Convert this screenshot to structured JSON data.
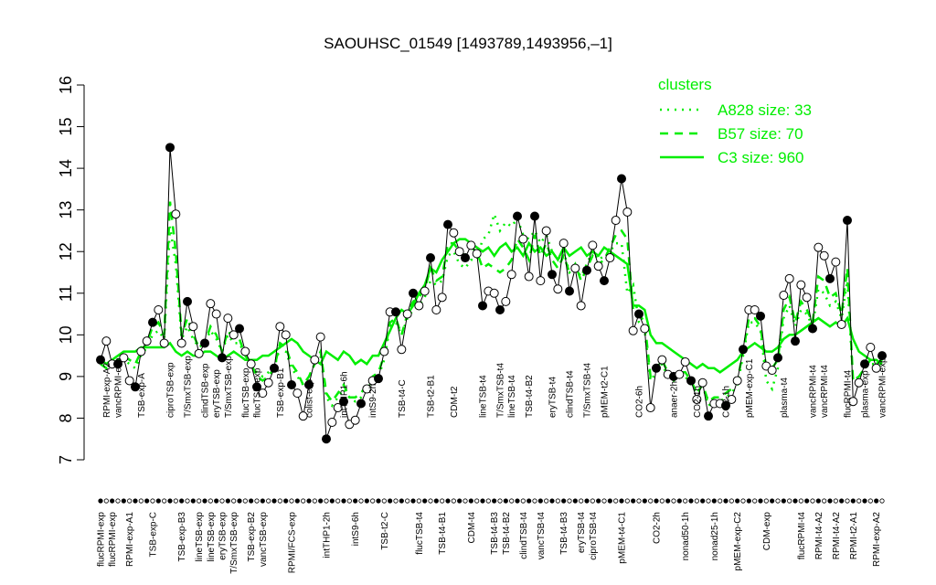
{
  "chart_data": {
    "type": "line",
    "title": "SAOUHSC_01549 [1493789,1493956,–1]",
    "ylim": [
      7,
      16
    ],
    "yticks": [
      7,
      8,
      9,
      10,
      11,
      12,
      13,
      14,
      15,
      16
    ],
    "categories": [
      "flucRPMI-exp",
      "RPMI-exp-A2",
      "flucRPMI-exp",
      "vancRPMI-exp",
      null,
      "RPMI-exp-A1",
      null,
      "TSB-exp-A",
      null,
      "TSB-exp-C",
      null,
      null,
      "ciproTSB-exp",
      null,
      "TSB-exp-B3",
      "T/SmxTSB-exp",
      null,
      "lineTSB-exp",
      "clindTSB-exp",
      "lineTSB-exp",
      "eryTSB-exp",
      "eryTSB-exp",
      "T/SmxTSB-exp",
      "T/SmxTSB-exp",
      null,
      "flucTSB-exp",
      "TSB-exp-B2",
      "flucTSB-exp",
      "vancTSB-exp",
      null,
      null,
      "TSB-exp-B1",
      null,
      "RPMI/FCS-exp",
      null,
      null,
      "colist-exp",
      null,
      null,
      "intTHP1-2h",
      null,
      null,
      "intTHP1-6h",
      null,
      "intS9-6h",
      null,
      null,
      "intS9-2h",
      null,
      "TSB-t2-C",
      null,
      null,
      "TSB-t4-C",
      null,
      null,
      "flucTSB-t4",
      null,
      "TSB-t2-B1",
      null,
      "TSB-t4-B1",
      null,
      "CDM-t2",
      null,
      null,
      "CDM-t4",
      null,
      "lineTSB-t4",
      null,
      "TSB-t4-B3",
      "T/SmxTSB-t4",
      "TSB-t4-B2",
      "lineTSB-t4",
      null,
      "clindTSB-t4",
      "TSB-t4-B2",
      null,
      "vancTSB-t4",
      null,
      "eryTSB-t4",
      null,
      "TSB-t4-B3",
      "clindTSB-t4",
      null,
      "eryTSB-t4",
      "T/SmxTSB-t4",
      "ciproTSB-t4",
      null,
      "pMEM-t2-C1",
      null,
      null,
      "pMEM-t4-C1",
      null,
      null,
      "CO2-6h",
      null,
      null,
      "CO2-2h",
      null,
      null,
      "anaer-2h",
      null,
      "nonad50-1h",
      null,
      "CO2-1h",
      null,
      null,
      "nonad25-1h",
      null,
      "CO2-1h",
      null,
      "pMEM-exp-C2",
      null,
      "pMEM-exp-C1",
      null,
      null,
      "CDM-exp",
      null,
      null,
      "plasma-t4",
      null,
      null,
      "flucRPMI-t4",
      null,
      "vancRPMI-t4",
      "RPMI-t4-A2",
      "vancRPMI-t4",
      null,
      "RPMI-t4-A2",
      null,
      "flucRPMI-t4",
      "RPMI-t2-A1",
      null,
      "plasma-exp",
      null,
      "RPMI-exp-A2",
      "vancRPMI-exp"
    ],
    "values": [
      9.4,
      9.85,
      9.3,
      9.3,
      9.45,
      8.9,
      8.75,
      9.6,
      9.85,
      10.3,
      10.6,
      9.8,
      14.5,
      12.9,
      9.8,
      10.8,
      10.2,
      9.55,
      9.8,
      10.75,
      10.5,
      9.45,
      10.4,
      10.0,
      10.15,
      9.6,
      9.3,
      8.75,
      8.6,
      8.85,
      9.2,
      10.2,
      10.0,
      8.8,
      8.6,
      8.05,
      8.8,
      9.4,
      9.95,
      7.5,
      7.9,
      8.25,
      8.4,
      7.85,
      7.95,
      8.35,
      8.7,
      8.9,
      8.95,
      9.6,
      10.55,
      10.55,
      9.65,
      10.5,
      11.0,
      10.7,
      11.05,
      11.85,
      10.6,
      10.9,
      12.65,
      12.45,
      12.0,
      11.85,
      12.15,
      11.95,
      10.7,
      11.05,
      11.0,
      10.6,
      10.8,
      11.45,
      12.85,
      12.3,
      11.4,
      12.85,
      11.3,
      12.5,
      11.45,
      11.1,
      12.2,
      11.05,
      11.6,
      10.7,
      11.55,
      12.15,
      11.65,
      11.3,
      11.85,
      12.75,
      13.75,
      12.95,
      10.1,
      10.5,
      10.15,
      8.25,
      9.2,
      9.4,
      9.05,
      9.0,
      9.05,
      9.35,
      8.9,
      8.45,
      8.85,
      8.05,
      8.35,
      8.35,
      8.3,
      8.45,
      8.9,
      9.65,
      10.6,
      10.6,
      10.45,
      9.25,
      9.15,
      9.45,
      10.95,
      11.35,
      9.85,
      11.2,
      10.9,
      10.15,
      12.1,
      11.9,
      11.35,
      11.75,
      10.25,
      12.75,
      8.4,
      8.85,
      9.3,
      9.7,
      9.2,
      9.5
    ],
    "legend_title": "clusters",
    "series": [
      {
        "name": "A828 size: 33",
        "color": "#00ee00",
        "dash": "dotted",
        "values": [
          9.3,
          9.3,
          9.3,
          9.4,
          9.4,
          9.3,
          9.2,
          9.5,
          9.7,
          10.0,
          10.1,
          9.9,
          12.6,
          11.7,
          9.9,
          10.2,
          9.9,
          9.7,
          9.8,
          10.1,
          9.9,
          9.6,
          10.0,
          9.8,
          9.8,
          9.5,
          9.3,
          9.1,
          9.0,
          9.1,
          9.2,
          9.7,
          9.6,
          9.2,
          9.0,
          8.8,
          9.0,
          9.3,
          9.5,
          8.5,
          8.3,
          8.5,
          8.7,
          8.5,
          8.4,
          8.5,
          8.7,
          8.9,
          9.0,
          9.4,
          10.2,
          10.3,
          10.0,
          10.4,
          10.6,
          10.7,
          10.9,
          11.3,
          11.2,
          11.3,
          11.9,
          12.0,
          11.7,
          11.6,
          11.8,
          11.8,
          12.3,
          12.4,
          12.9,
          12.5,
          12.7,
          12.6,
          12.8,
          12.4,
          12.3,
          12.5,
          12.2,
          12.4,
          12.0,
          11.8,
          12.0,
          11.5,
          11.6,
          11.4,
          11.7,
          12.0,
          11.8,
          11.9,
          12.0,
          12.2,
          12.2,
          11.0,
          11.2,
          10.3,
          10.1,
          8.9,
          9.1,
          9.3,
          9.0,
          8.9,
          9.0,
          9.0,
          8.8,
          8.6,
          8.8,
          8.3,
          8.4,
          8.4,
          8.5,
          8.6,
          8.8,
          9.5,
          10.3,
          10.3,
          10.1,
          8.9,
          8.7,
          9.2,
          10.4,
          10.7,
          10.2,
          10.6,
          10.5,
          10.2,
          11.1,
          11.0,
          10.7,
          10.8,
          10.4,
          11.3,
          8.9,
          9.0,
          9.2,
          9.3,
          9.3,
          9.3
        ]
      },
      {
        "name": "B57 size: 70",
        "color": "#00ee00",
        "dash": "dashed",
        "values": [
          9.3,
          9.2,
          9.3,
          9.4,
          9.5,
          9.4,
          9.3,
          9.6,
          9.8,
          10.2,
          10.3,
          10.0,
          13.2,
          12.0,
          10.0,
          10.4,
          10.0,
          9.7,
          9.8,
          10.2,
          10.0,
          9.6,
          10.1,
          9.9,
          9.9,
          9.5,
          9.3,
          9.0,
          8.9,
          9.0,
          9.2,
          9.8,
          9.7,
          9.3,
          9.1,
          8.8,
          9.0,
          9.3,
          9.6,
          8.6,
          8.4,
          8.6,
          8.8,
          8.5,
          8.5,
          8.6,
          8.8,
          9.0,
          9.1,
          9.5,
          10.3,
          10.4,
          10.0,
          10.5,
          10.8,
          10.9,
          11.1,
          11.6,
          11.3,
          11.4,
          12.2,
          12.2,
          12.0,
          11.9,
          12.1,
          12.0,
          11.6,
          11.7,
          11.6,
          11.5,
          11.6,
          11.8,
          12.3,
          12.1,
          11.8,
          12.4,
          11.9,
          12.2,
          11.8,
          11.6,
          11.9,
          11.5,
          11.7,
          11.3,
          11.6,
          11.9,
          11.7,
          11.8,
          12.1,
          12.4,
          12.5,
          12.3,
          10.6,
          10.5,
          10.3,
          9.0,
          9.2,
          9.4,
          9.1,
          9.0,
          9.1,
          9.1,
          8.9,
          8.6,
          8.8,
          8.4,
          8.5,
          8.5,
          8.6,
          8.7,
          8.9,
          9.6,
          10.4,
          10.4,
          10.2,
          9.2,
          9.2,
          9.4,
          10.6,
          10.9,
          10.3,
          10.8,
          10.6,
          10.3,
          11.4,
          11.3,
          10.9,
          11.0,
          10.5,
          11.6,
          8.9,
          9.0,
          9.2,
          9.4,
          9.3,
          9.4
        ]
      },
      {
        "name": "C3 size: 960",
        "color": "#00ee00",
        "dash": "solid",
        "values": [
          9.4,
          9.3,
          9.4,
          9.5,
          9.6,
          9.6,
          9.6,
          9.7,
          9.7,
          9.7,
          9.7,
          9.7,
          9.8,
          9.6,
          9.5,
          9.6,
          9.5,
          9.5,
          9.6,
          9.6,
          9.5,
          9.4,
          9.5,
          9.6,
          9.5,
          9.4,
          9.4,
          9.4,
          9.5,
          9.5,
          9.6,
          9.7,
          9.8,
          9.9,
          9.8,
          9.6,
          9.5,
          9.4,
          9.3,
          9.6,
          9.5,
          9.4,
          9.6,
          9.5,
          9.3,
          9.4,
          9.3,
          9.5,
          9.5,
          9.8,
          10.1,
          10.4,
          10.6,
          10.5,
          10.7,
          11.0,
          11.2,
          11.6,
          11.5,
          11.8,
          12.0,
          12.2,
          12.3,
          12.3,
          12.2,
          12.1,
          12.0,
          12.1,
          11.9,
          12.1,
          12.2,
          12.0,
          12.1,
          11.9,
          12.2,
          12.0,
          12.1,
          11.9,
          12.0,
          11.8,
          12.1,
          11.9,
          12.0,
          12.1,
          11.9,
          12.0,
          11.9,
          12.1,
          12.0,
          11.9,
          11.8,
          11.7,
          10.7,
          10.7,
          10.6,
          10.0,
          9.8,
          9.8,
          9.7,
          9.6,
          9.5,
          9.4,
          9.3,
          9.2,
          9.3,
          9.2,
          9.2,
          9.1,
          9.2,
          9.3,
          9.4,
          9.6,
          9.7,
          9.8,
          9.7,
          9.6,
          9.6,
          9.7,
          9.9,
          10.0,
          10.0,
          10.1,
          10.2,
          10.3,
          10.4,
          10.3,
          10.2,
          10.3,
          10.2,
          10.4,
          9.9,
          9.6,
          9.5,
          9.4,
          9.4,
          9.3
        ]
      }
    ]
  }
}
